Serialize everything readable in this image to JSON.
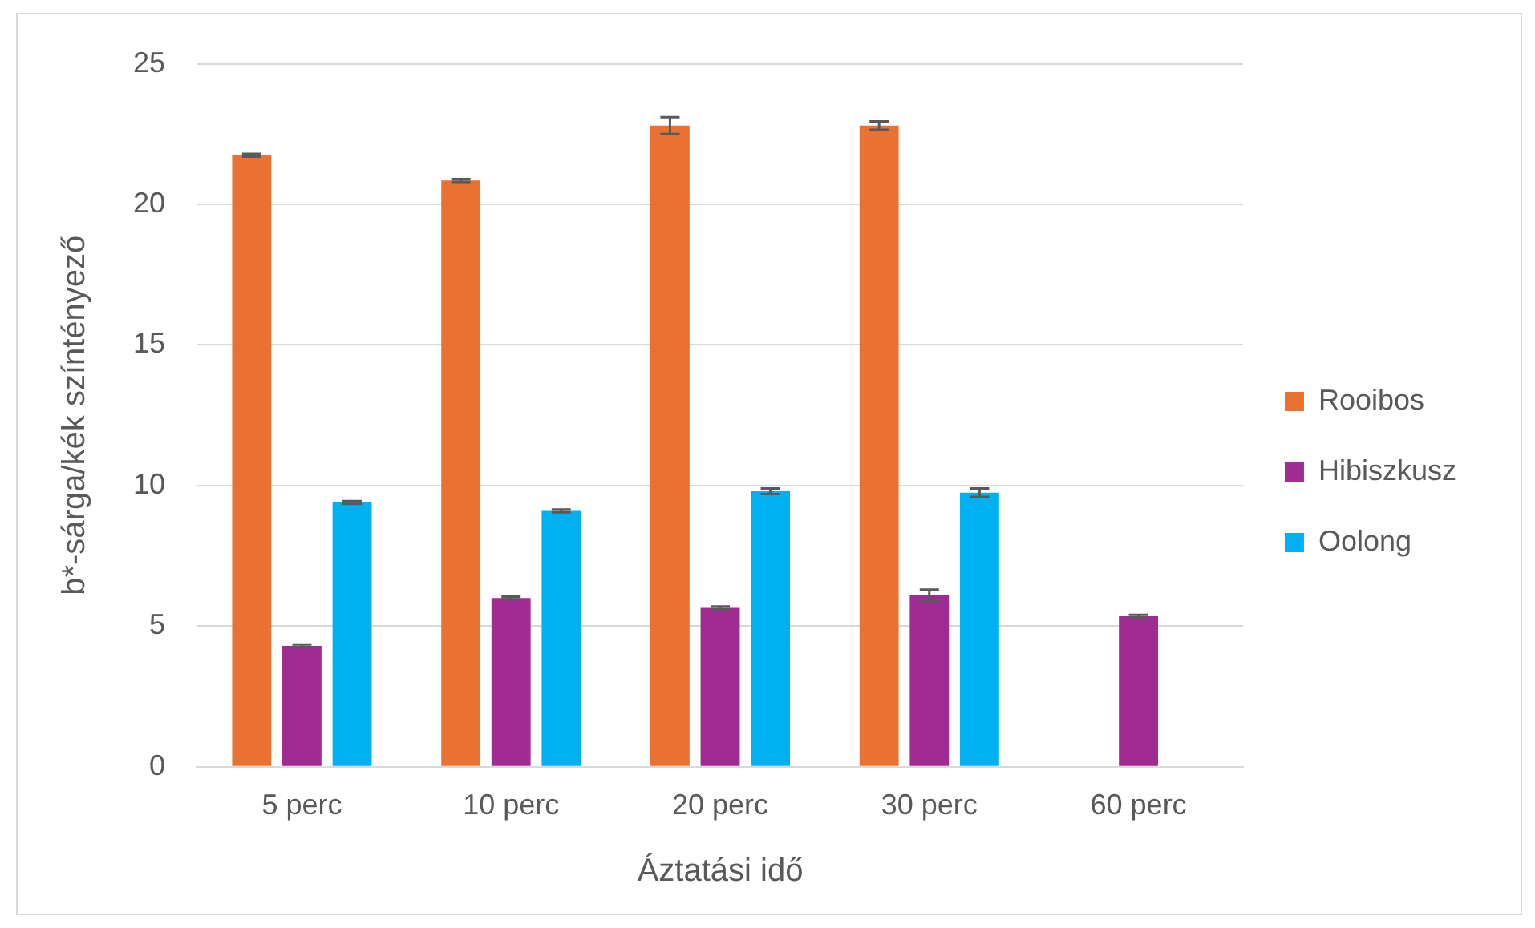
{
  "chart_data": {
    "type": "bar",
    "xlabel": "Áztatási idő",
    "ylabel": "b*-sárga/kék színtényező",
    "categories": [
      "5 perc",
      "10 perc",
      "20 perc",
      "30 perc",
      "60 perc"
    ],
    "series": [
      {
        "name": "Rooibos",
        "color": "#e97132",
        "values": [
          21.75,
          20.85,
          22.8,
          22.8,
          null
        ],
        "errors": [
          0.05,
          0.05,
          0.3,
          0.15,
          null
        ]
      },
      {
        "name": "Hibiszkusz",
        "color": "#a02b93",
        "values": [
          4.3,
          6.0,
          5.65,
          6.1,
          5.35
        ],
        "errors": [
          0.05,
          0.05,
          0.05,
          0.2,
          0.05
        ]
      },
      {
        "name": "Oolong",
        "color": "#00b0f0",
        "values": [
          9.4,
          9.1,
          9.8,
          9.75,
          null
        ],
        "errors": [
          0.05,
          0.05,
          0.1,
          0.15,
          null
        ]
      }
    ],
    "ylim": [
      0,
      25
    ],
    "yticks": [
      0,
      5,
      10,
      15,
      20,
      25
    ],
    "grid": "y",
    "legend": "right"
  }
}
